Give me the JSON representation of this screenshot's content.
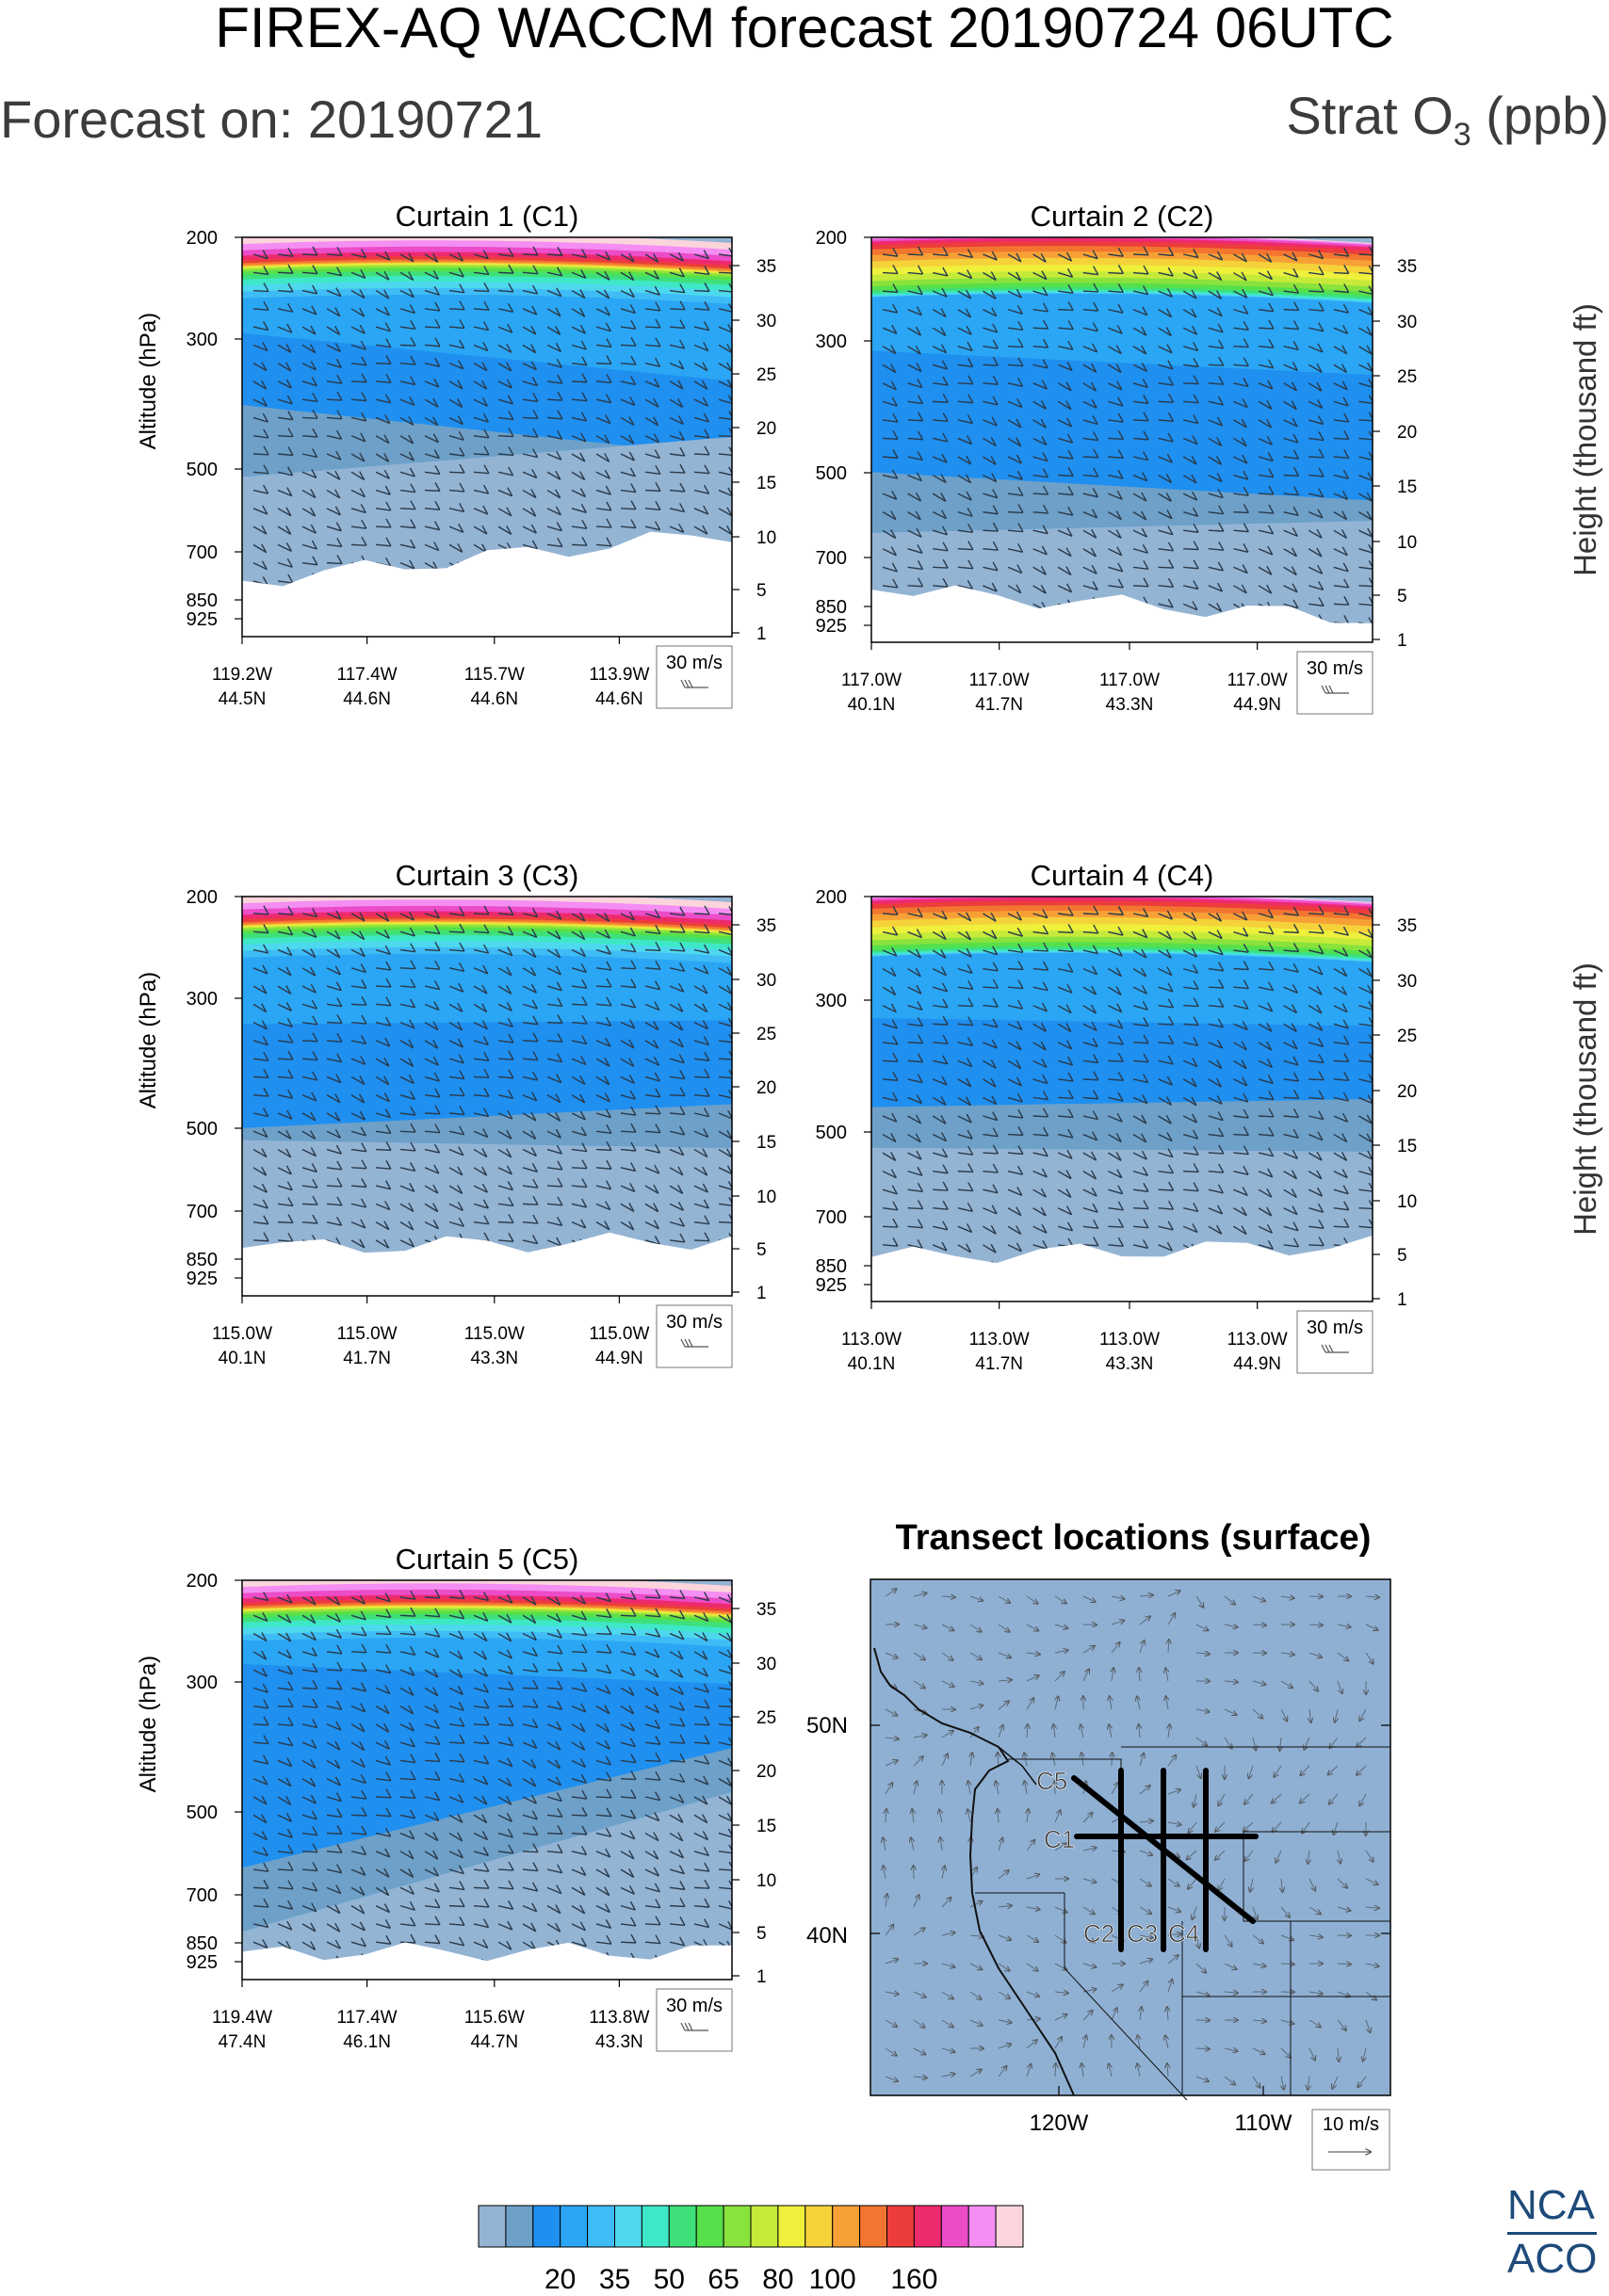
{
  "header": {
    "title": "FIREX-AQ WACCM forecast 20190724 06UTC",
    "forecast_on": "Forecast on: 20190721",
    "variable": "Strat O",
    "variable_sub": "3",
    "variable_unit": " (ppb)"
  },
  "chart_data": [
    {
      "type": "heatmap",
      "title": "Curtain 1 (C1)",
      "ylabel": "Altitude (hPa)",
      "y2label": "",
      "pressure_ticks": [
        "200",
        "300",
        "500",
        "700",
        "850",
        "925"
      ],
      "height_ticks": [
        "35",
        "30",
        "25",
        "20",
        "15",
        "10",
        "5",
        "1"
      ],
      "x_ticks": [
        [
          "119.2W",
          "44.5N"
        ],
        [
          "117.4W",
          "44.6N"
        ],
        [
          "115.7W",
          "44.6N"
        ],
        [
          "113.9W",
          "44.6N"
        ]
      ],
      "wind_key": "30 m/s"
    },
    {
      "type": "heatmap",
      "title": "Curtain 2 (C2)",
      "ylabel": "",
      "y2label": "Height (thousand ft)",
      "pressure_ticks": [
        "200",
        "300",
        "500",
        "700",
        "850",
        "925"
      ],
      "height_ticks": [
        "35",
        "30",
        "25",
        "20",
        "15",
        "10",
        "5",
        "1"
      ],
      "x_ticks": [
        [
          "117.0W",
          "40.1N"
        ],
        [
          "117.0W",
          "41.7N"
        ],
        [
          "117.0W",
          "43.3N"
        ],
        [
          "117.0W",
          "44.9N"
        ]
      ],
      "wind_key": "30 m/s"
    },
    {
      "type": "heatmap",
      "title": "Curtain 3 (C3)",
      "ylabel": "Altitude (hPa)",
      "y2label": "",
      "pressure_ticks": [
        "200",
        "300",
        "500",
        "700",
        "850",
        "925"
      ],
      "height_ticks": [
        "35",
        "30",
        "25",
        "20",
        "15",
        "10",
        "5",
        "1"
      ],
      "x_ticks": [
        [
          "115.0W",
          "40.1N"
        ],
        [
          "115.0W",
          "41.7N"
        ],
        [
          "115.0W",
          "43.3N"
        ],
        [
          "115.0W",
          "44.9N"
        ]
      ],
      "wind_key": "30 m/s"
    },
    {
      "type": "heatmap",
      "title": "Curtain 4 (C4)",
      "ylabel": "",
      "y2label": "Height (thousand ft)",
      "pressure_ticks": [
        "200",
        "300",
        "500",
        "700",
        "850",
        "925"
      ],
      "height_ticks": [
        "35",
        "30",
        "25",
        "20",
        "15",
        "10",
        "5",
        "1"
      ],
      "x_ticks": [
        [
          "113.0W",
          "40.1N"
        ],
        [
          "113.0W",
          "41.7N"
        ],
        [
          "113.0W",
          "43.3N"
        ],
        [
          "113.0W",
          "44.9N"
        ]
      ],
      "wind_key": "30 m/s"
    },
    {
      "type": "heatmap",
      "title": "Curtain 5 (C5)",
      "ylabel": "Altitude (hPa)",
      "y2label": "",
      "pressure_ticks": [
        "200",
        "300",
        "500",
        "700",
        "850",
        "925"
      ],
      "height_ticks": [
        "35",
        "30",
        "25",
        "20",
        "15",
        "10",
        "5",
        "1"
      ],
      "x_ticks": [
        [
          "119.4W",
          "47.4N"
        ],
        [
          "117.4W",
          "46.1N"
        ],
        [
          "115.6W",
          "44.7N"
        ],
        [
          "113.8W",
          "43.3N"
        ]
      ],
      "wind_key": "30 m/s"
    }
  ],
  "map": {
    "title": "Transect locations (surface)",
    "lat_ticks": [
      "50N",
      "40N"
    ],
    "lon_ticks": [
      "120W",
      "110W"
    ],
    "labels": [
      "C5",
      "C1",
      "C2",
      "C3",
      "C4"
    ],
    "wind_key": "10 m/s"
  },
  "colorbar": {
    "colors": [
      "#94b4d4",
      "#6ea0c8",
      "#1f8ff0",
      "#2aa6f5",
      "#3fbcf5",
      "#4ed8ee",
      "#3ee8c6",
      "#3ee07a",
      "#56e04a",
      "#8ae23c",
      "#c6ea3a",
      "#eef03c",
      "#f5d23a",
      "#f7a036",
      "#f27630",
      "#ec3c3c",
      "#ee2a6e",
      "#ec4cc8",
      "#f48ef2",
      "#fbd4dc"
    ],
    "labels": [
      "20",
      "35",
      "50",
      "65",
      "80",
      "100",
      "160"
    ]
  },
  "logo": {
    "line1": "NCA",
    "line2": "ACO"
  }
}
